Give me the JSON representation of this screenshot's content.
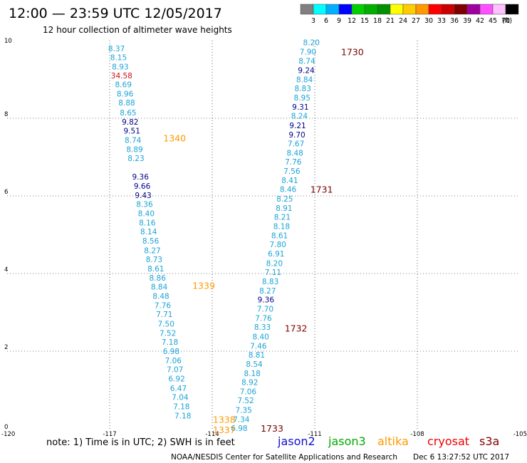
{
  "header": {
    "title": "12:00 — 23:59 UTC 12/05/2017",
    "subtitle": "12 hour collection of altimeter wave heights"
  },
  "colorbar": {
    "unit": "(ft)",
    "bins": [
      {
        "color": "#808080",
        "label": "3"
      },
      {
        "color": "#00ffff",
        "label": "6"
      },
      {
        "color": "#00b0ff",
        "label": "9"
      },
      {
        "color": "#0000ff",
        "label": "12"
      },
      {
        "color": "#00d000",
        "label": "15"
      },
      {
        "color": "#00b000",
        "label": "18"
      },
      {
        "color": "#009000",
        "label": "21"
      },
      {
        "color": "#ffff00",
        "label": "24"
      },
      {
        "color": "#ffcc00",
        "label": "27"
      },
      {
        "color": "#ff9900",
        "label": "30"
      },
      {
        "color": "#ff0000",
        "label": "33"
      },
      {
        "color": "#cc0000",
        "label": "36"
      },
      {
        "color": "#800000",
        "label": "39"
      },
      {
        "color": "#a000a0",
        "label": "42"
      },
      {
        "color": "#ff50ff",
        "label": "45"
      },
      {
        "color": "#ffc0ff",
        "label": "70"
      },
      {
        "color": "#000000",
        "label": ""
      }
    ]
  },
  "footer": {
    "note": "note: 1) Time is in UTC; 2) SWH is in feet",
    "legend": [
      {
        "name": "jason2",
        "color": "#1010cc"
      },
      {
        "name": "jason3",
        "color": "#00aa00"
      },
      {
        "name": "altika",
        "color": "#ff9900"
      },
      {
        "name": "cryosat",
        "color": "#ee0000"
      },
      {
        "name": "s3a",
        "color": "#800000"
      }
    ],
    "credit": "NOAA/NESDIS Center for Satellite Applications and Research",
    "timestamp": "Dec  6 13:27:52 UTC 2017"
  },
  "chart_data": {
    "type": "scatter",
    "xlim": [
      -120,
      -105
    ],
    "ylim": [
      0,
      10
    ],
    "xticks": [
      "-120",
      "-117",
      "-114",
      "-111",
      "-108",
      "-105"
    ],
    "yticks": [
      "0",
      "2",
      "4",
      "6",
      "8",
      "10"
    ],
    "grid": true,
    "series": [
      {
        "color": "#1aa3d6",
        "points": [
          {
            "x": -116.8,
            "y": 9.8,
            "v": "8.37"
          },
          {
            "x": -116.74,
            "y": 9.57,
            "v": "8.15"
          },
          {
            "x": -116.69,
            "y": 9.33,
            "v": "8.93"
          },
          {
            "x": -116.6,
            "y": 8.87,
            "v": "8.69"
          },
          {
            "x": -116.55,
            "y": 8.63,
            "v": "8.96"
          },
          {
            "x": -116.5,
            "y": 8.4,
            "v": "8.88"
          },
          {
            "x": -116.46,
            "y": 8.15,
            "v": "8.65"
          },
          {
            "x": -116.32,
            "y": 7.44,
            "v": "8.74"
          },
          {
            "x": -116.27,
            "y": 7.2,
            "v": "8.89"
          },
          {
            "x": -116.23,
            "y": 6.97,
            "v": "8.23"
          },
          {
            "x": -115.98,
            "y": 5.79,
            "v": "8.36"
          },
          {
            "x": -115.93,
            "y": 5.55,
            "v": "8.40"
          },
          {
            "x": -115.9,
            "y": 5.31,
            "v": "8.16"
          },
          {
            "x": -115.86,
            "y": 5.08,
            "v": "8.14"
          },
          {
            "x": -115.8,
            "y": 4.84,
            "v": "8.56"
          },
          {
            "x": -115.75,
            "y": 4.6,
            "v": "8.27"
          },
          {
            "x": -115.7,
            "y": 4.37,
            "v": "8.73"
          },
          {
            "x": -115.65,
            "y": 4.13,
            "v": "8.61"
          },
          {
            "x": -115.6,
            "y": 3.89,
            "v": "8.86"
          },
          {
            "x": -115.55,
            "y": 3.66,
            "v": "8.84"
          },
          {
            "x": -115.5,
            "y": 3.42,
            "v": "8.48"
          },
          {
            "x": -115.45,
            "y": 3.18,
            "v": "7.76"
          },
          {
            "x": -115.4,
            "y": 2.95,
            "v": "7.71"
          },
          {
            "x": -115.35,
            "y": 2.71,
            "v": "7.50"
          },
          {
            "x": -115.3,
            "y": 2.47,
            "v": "7.52"
          },
          {
            "x": -115.24,
            "y": 2.24,
            "v": "7.18"
          },
          {
            "x": -115.2,
            "y": 2.0,
            "v": "6.98"
          },
          {
            "x": -115.14,
            "y": 1.76,
            "v": "7.06"
          },
          {
            "x": -115.09,
            "y": 1.53,
            "v": "7.07"
          },
          {
            "x": -115.04,
            "y": 1.29,
            "v": "6.92"
          },
          {
            "x": -114.99,
            "y": 1.05,
            "v": "6.47"
          },
          {
            "x": -114.94,
            "y": 0.82,
            "v": "7.04"
          },
          {
            "x": -114.9,
            "y": 0.58,
            "v": "7.18"
          },
          {
            "x": -114.86,
            "y": 0.34,
            "v": "7.18"
          },
          {
            "x": -111.1,
            "y": 9.95,
            "v": "8.20"
          },
          {
            "x": -111.2,
            "y": 9.72,
            "v": "7.90"
          },
          {
            "x": -111.23,
            "y": 9.48,
            "v": "8.74"
          },
          {
            "x": -111.3,
            "y": 9.0,
            "v": "8.84"
          },
          {
            "x": -111.35,
            "y": 8.77,
            "v": "8.83"
          },
          {
            "x": -111.37,
            "y": 8.53,
            "v": "8.95"
          },
          {
            "x": -111.45,
            "y": 8.06,
            "v": "8.24"
          },
          {
            "x": -111.55,
            "y": 7.35,
            "v": "7.67"
          },
          {
            "x": -111.58,
            "y": 7.11,
            "v": "8.48"
          },
          {
            "x": -111.63,
            "y": 6.88,
            "v": "7.76"
          },
          {
            "x": -111.67,
            "y": 6.64,
            "v": "7.56"
          },
          {
            "x": -111.73,
            "y": 6.4,
            "v": "8.41"
          },
          {
            "x": -111.78,
            "y": 6.17,
            "v": "8.46"
          },
          {
            "x": -111.88,
            "y": 5.93,
            "v": "8.25"
          },
          {
            "x": -111.9,
            "y": 5.69,
            "v": "8.91"
          },
          {
            "x": -111.95,
            "y": 5.46,
            "v": "8.21"
          },
          {
            "x": -111.97,
            "y": 5.22,
            "v": "8.18"
          },
          {
            "x": -112.03,
            "y": 4.98,
            "v": "8.61"
          },
          {
            "x": -112.08,
            "y": 4.75,
            "v": "7.80"
          },
          {
            "x": -112.13,
            "y": 4.51,
            "v": "6.91"
          },
          {
            "x": -112.18,
            "y": 4.27,
            "v": "8.20"
          },
          {
            "x": -112.22,
            "y": 4.04,
            "v": "7.11"
          },
          {
            "x": -112.3,
            "y": 3.8,
            "v": "8.83"
          },
          {
            "x": -112.38,
            "y": 3.56,
            "v": "8.27"
          },
          {
            "x": -112.45,
            "y": 3.09,
            "v": "7.70"
          },
          {
            "x": -112.5,
            "y": 2.85,
            "v": "7.76"
          },
          {
            "x": -112.53,
            "y": 2.62,
            "v": "8.33"
          },
          {
            "x": -112.58,
            "y": 2.38,
            "v": "8.40"
          },
          {
            "x": -112.65,
            "y": 2.14,
            "v": "7.46"
          },
          {
            "x": -112.7,
            "y": 1.91,
            "v": "8.81"
          },
          {
            "x": -112.77,
            "y": 1.67,
            "v": "8.54"
          },
          {
            "x": -112.83,
            "y": 1.43,
            "v": "8.18"
          },
          {
            "x": -112.9,
            "y": 1.2,
            "v": "8.92"
          },
          {
            "x": -112.95,
            "y": 0.96,
            "v": "7.06"
          },
          {
            "x": -113.02,
            "y": 0.73,
            "v": "7.52"
          },
          {
            "x": -113.08,
            "y": 0.49,
            "v": "7.35"
          },
          {
            "x": -113.15,
            "y": 0.25,
            "v": "7.34"
          },
          {
            "x": -113.21,
            "y": 0.02,
            "v": "6.98"
          }
        ]
      },
      {
        "color": "#00008b",
        "points": [
          {
            "x": -116.4,
            "y": 7.91,
            "v": "9.82"
          },
          {
            "x": -116.35,
            "y": 7.68,
            "v": "9.51"
          },
          {
            "x": -116.1,
            "y": 6.5,
            "v": "9.36"
          },
          {
            "x": -116.05,
            "y": 6.26,
            "v": "9.66"
          },
          {
            "x": -116.02,
            "y": 6.02,
            "v": "9.43"
          },
          {
            "x": -111.25,
            "y": 9.24,
            "v": "9.24"
          },
          {
            "x": -111.42,
            "y": 8.29,
            "v": "9.31"
          },
          {
            "x": -111.5,
            "y": 7.82,
            "v": "9.21"
          },
          {
            "x": -111.52,
            "y": 7.58,
            "v": "9.70"
          },
          {
            "x": -112.43,
            "y": 3.33,
            "v": "9.36"
          }
        ]
      },
      {
        "color": "#cc1111",
        "points": [
          {
            "x": -116.65,
            "y": 9.1,
            "v": "34.58"
          }
        ]
      }
    ],
    "time_labels": [
      {
        "x": -109.9,
        "y": 9.72,
        "v": "1730",
        "color": "#7a0000"
      },
      {
        "x": -110.8,
        "y": 6.17,
        "v": "1731",
        "color": "#7a0000"
      },
      {
        "x": -111.55,
        "y": 2.6,
        "v": "1732",
        "color": "#7a0000"
      },
      {
        "x": -112.25,
        "y": 0.02,
        "v": "1733",
        "color": "#7a0000"
      },
      {
        "x": -115.1,
        "y": 7.5,
        "v": "1340",
        "color": "#ff9900"
      },
      {
        "x": -114.25,
        "y": 3.7,
        "v": "1339",
        "color": "#ff9900"
      },
      {
        "x": -113.65,
        "y": 0.25,
        "v": "1338",
        "color": "#ff9900"
      },
      {
        "x": -113.65,
        "y": -0.02,
        "v": "1337",
        "color": "#ff9900"
      }
    ]
  }
}
